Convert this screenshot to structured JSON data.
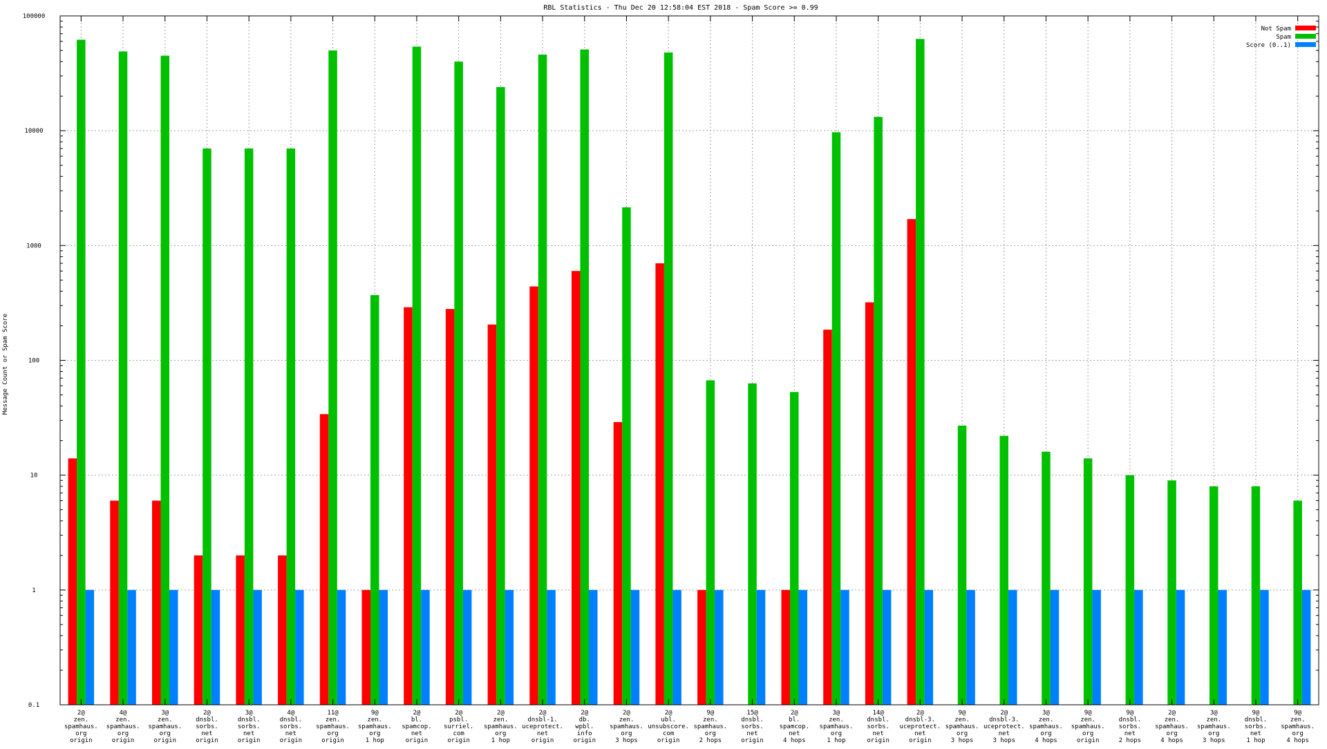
{
  "chart_data": {
    "type": "bar",
    "title": "RBL Statistics - Thu Dec 20 12:58:04 EST 2018 - Spam Score >= 0.99",
    "xlabel": "",
    "ylabel": "Message Count or Spam Score",
    "yscale": "log",
    "ylim": [
      0.1,
      100000
    ],
    "yticks": [
      0.1,
      1,
      10,
      100,
      1000,
      10000,
      100000
    ],
    "ytick_labels": [
      "0.1",
      "1",
      "10",
      "100",
      "1000",
      "10000",
      "100000"
    ],
    "grid": true,
    "legend_position": "top-right",
    "categories": [
      [
        "2@",
        "zen.",
        "spamhaus.",
        "org",
        "origin"
      ],
      [
        "4@",
        "zen.",
        "spamhaus.",
        "org",
        "origin"
      ],
      [
        "3@",
        "zen.",
        "spamhaus.",
        "org",
        "origin"
      ],
      [
        "2@",
        "dnsbl.",
        "sorbs.",
        "net",
        "origin"
      ],
      [
        "3@",
        "dnsbl.",
        "sorbs.",
        "net",
        "origin"
      ],
      [
        "4@",
        "dnsbl.",
        "sorbs.",
        "net",
        "origin"
      ],
      [
        "11@",
        "zen.",
        "spamhaus.",
        "org",
        "origin"
      ],
      [
        "9@",
        "zen.",
        "spamhaus.",
        "org",
        "1 hop"
      ],
      [
        "2@",
        "bl.",
        "spamcop.",
        "net",
        "origin"
      ],
      [
        "2@",
        "psbl.",
        "surriel.",
        "com",
        "origin"
      ],
      [
        "2@",
        "zen.",
        "spamhaus.",
        "org",
        "1 hop"
      ],
      [
        "2@",
        "dnsbl-1.",
        "uceprotect.",
        "net",
        "origin"
      ],
      [
        "2@",
        "db.",
        "wpbl.",
        "info",
        "origin"
      ],
      [
        "2@",
        "zen.",
        "spamhaus.",
        "org",
        "3 hops"
      ],
      [
        "2@",
        "ubl.",
        "unsubscore.",
        "com",
        "origin"
      ],
      [
        "9@",
        "zen.",
        "spamhaus.",
        "org",
        "2 hops"
      ],
      [
        "15@",
        "dnsbl.",
        "sorbs.",
        "net",
        "origin"
      ],
      [
        "2@",
        "bl.",
        "spamcop.",
        "net",
        "4 hops"
      ],
      [
        "3@",
        "zen.",
        "spamhaus.",
        "org",
        "1 hop"
      ],
      [
        "14@",
        "dnsbl.",
        "sorbs.",
        "net",
        "origin"
      ],
      [
        "2@",
        "dnsbl-3.",
        "uceprotect.",
        "net",
        "origin"
      ],
      [
        "9@",
        "zen.",
        "spamhaus.",
        "org",
        "3 hops"
      ],
      [
        "2@",
        "dnsbl-3.",
        "uceprotect.",
        "net",
        "3 hops"
      ],
      [
        "3@",
        "zen.",
        "spamhaus.",
        "org",
        "4 hops"
      ],
      [
        "9@",
        "zen.",
        "spamhaus.",
        "org",
        "origin"
      ],
      [
        "9@",
        "dnsbl.",
        "sorbs.",
        "net",
        "2 hops"
      ],
      [
        "2@",
        "zen.",
        "spamhaus.",
        "org",
        "4 hops"
      ],
      [
        "3@",
        "zen.",
        "spamhaus.",
        "org",
        "3 hops"
      ],
      [
        "9@",
        "dnsbl.",
        "sorbs.",
        "net",
        "1 hop"
      ],
      [
        "9@",
        "zen.",
        "spamhaus.",
        "org",
        "4 hops"
      ]
    ],
    "series": [
      {
        "name": "Not Spam",
        "color": "#ff0000",
        "values": [
          14,
          6,
          6,
          2,
          2,
          2,
          34,
          1,
          290,
          280,
          205,
          440,
          600,
          29,
          700,
          1,
          null,
          1,
          185,
          320,
          1700,
          null,
          null,
          null,
          null,
          null,
          null,
          null,
          null,
          null
        ]
      },
      {
        "name": "Spam",
        "color": "#00c000",
        "values": [
          62000,
          49000,
          45000,
          7000,
          7000,
          7000,
          50000,
          370,
          54000,
          40000,
          24000,
          46000,
          51000,
          2150,
          48000,
          67,
          63,
          53,
          9700,
          13200,
          63000,
          27,
          22,
          16,
          14,
          10,
          9,
          8,
          8,
          6
        ]
      },
      {
        "name": "Score (0..1)",
        "color": "#0080ff",
        "values": [
          1,
          1,
          1,
          1,
          1,
          1,
          1,
          1,
          1,
          1,
          1,
          1,
          1,
          1,
          1,
          1,
          1,
          1,
          1,
          1,
          1,
          1,
          1,
          1,
          1,
          1,
          1,
          1,
          1,
          1
        ]
      }
    ]
  }
}
